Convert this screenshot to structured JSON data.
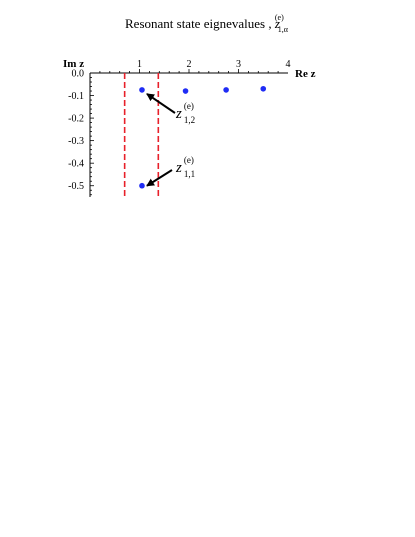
{
  "chart_data": {
    "type": "scatter",
    "title": "Resonant state eignevalues ,",
    "title_symbol": "z",
    "title_superscript": "(e)",
    "title_subscript": "1,α",
    "xlabel": "Re z",
    "ylabel": "Im z",
    "xlim": [
      0,
      4
    ],
    "ylim": [
      -0.55,
      0.0
    ],
    "x_ticks": [
      "1",
      "2",
      "3",
      "4"
    ],
    "y_ticks": [
      "0.0",
      "-0.1",
      "-0.2",
      "-0.3",
      "-0.4",
      "-0.5"
    ],
    "y_tick_values": [
      0.0,
      -0.1,
      -0.2,
      -0.3,
      -0.4,
      -0.5
    ],
    "x_tick_values": [
      1,
      2,
      3,
      4
    ],
    "points": [
      {
        "x": 1.05,
        "y": -0.075
      },
      {
        "x": 1.93,
        "y": -0.08
      },
      {
        "x": 2.75,
        "y": -0.075
      },
      {
        "x": 3.5,
        "y": -0.07
      },
      {
        "x": 1.05,
        "y": -0.5
      }
    ],
    "point_color": "#1f2cf5",
    "vertical_lines": [
      {
        "x": 0.7,
        "color": "#e8202a",
        "style": "dashed"
      },
      {
        "x": 1.38,
        "color": "#e8202a",
        "style": "dashed"
      }
    ],
    "annotations": [
      {
        "symbol": "z",
        "superscript": "(e)",
        "subscript": "1,2",
        "target": {
          "x": 1.05,
          "y": -0.075
        }
      },
      {
        "symbol": "z",
        "superscript": "(e)",
        "subscript": "1,1",
        "target": {
          "x": 1.05,
          "y": -0.5
        }
      }
    ],
    "grid": false,
    "legend": "none"
  }
}
